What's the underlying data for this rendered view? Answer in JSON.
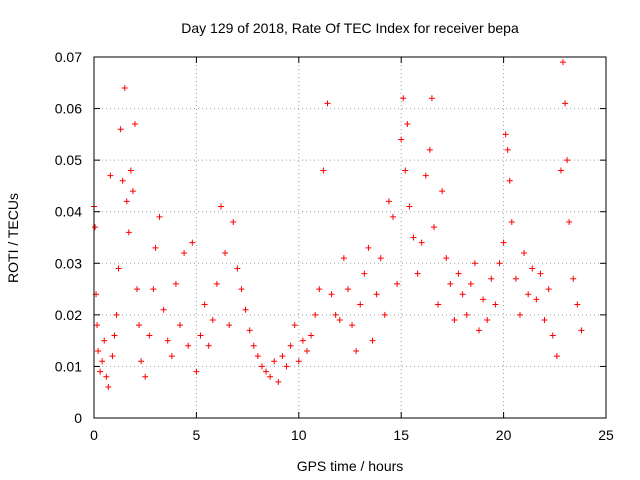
{
  "chart_data": {
    "type": "scatter",
    "title": "Day 129 of 2018, Rate Of TEC Index for receiver bepa",
    "xlabel": "GPS time / hours",
    "ylabel": "ROTI / TECUs",
    "xlim": [
      0,
      25
    ],
    "ylim": [
      0,
      0.07
    ],
    "xticks": [
      0,
      5,
      10,
      15,
      20,
      25
    ],
    "xtick_labels": [
      "0",
      "5",
      "10",
      "15",
      "20",
      "25"
    ],
    "yticks": [
      0,
      0.01,
      0.02,
      0.03,
      0.04,
      0.05,
      0.06,
      0.07
    ],
    "ytick_labels": [
      "0",
      "0.01",
      "0.02",
      "0.03",
      "0.04",
      "0.05",
      "0.06",
      "0.07"
    ],
    "grid": true,
    "marker": "+",
    "marker_color": "#ff0000",
    "series": [
      {
        "name": "ROTI",
        "points": [
          [
            0.0,
            0.041
          ],
          [
            0.05,
            0.037
          ],
          [
            0.1,
            0.024
          ],
          [
            0.15,
            0.018
          ],
          [
            0.2,
            0.013
          ],
          [
            0.3,
            0.009
          ],
          [
            0.4,
            0.011
          ],
          [
            0.5,
            0.015
          ],
          [
            0.6,
            0.008
          ],
          [
            0.7,
            0.006
          ],
          [
            0.8,
            0.047
          ],
          [
            0.9,
            0.012
          ],
          [
            1.0,
            0.016
          ],
          [
            1.1,
            0.02
          ],
          [
            1.2,
            0.029
          ],
          [
            1.3,
            0.056
          ],
          [
            1.4,
            0.046
          ],
          [
            1.5,
            0.064
          ],
          [
            1.6,
            0.042
          ],
          [
            1.7,
            0.036
          ],
          [
            1.8,
            0.048
          ],
          [
            1.9,
            0.044
          ],
          [
            2.0,
            0.057
          ],
          [
            2.1,
            0.025
          ],
          [
            2.2,
            0.018
          ],
          [
            2.3,
            0.011
          ],
          [
            2.5,
            0.008
          ],
          [
            2.7,
            0.016
          ],
          [
            2.9,
            0.025
          ],
          [
            3.0,
            0.033
          ],
          [
            3.2,
            0.039
          ],
          [
            3.4,
            0.021
          ],
          [
            3.6,
            0.015
          ],
          [
            3.8,
            0.012
          ],
          [
            4.0,
            0.026
          ],
          [
            4.2,
            0.018
          ],
          [
            4.4,
            0.032
          ],
          [
            4.6,
            0.014
          ],
          [
            4.8,
            0.034
          ],
          [
            5.0,
            0.009
          ],
          [
            5.2,
            0.016
          ],
          [
            5.4,
            0.022
          ],
          [
            5.6,
            0.014
          ],
          [
            5.8,
            0.019
          ],
          [
            6.0,
            0.026
          ],
          [
            6.2,
            0.041
          ],
          [
            6.4,
            0.032
          ],
          [
            6.6,
            0.018
          ],
          [
            6.8,
            0.038
          ],
          [
            7.0,
            0.029
          ],
          [
            7.2,
            0.025
          ],
          [
            7.4,
            0.021
          ],
          [
            7.6,
            0.017
          ],
          [
            7.8,
            0.014
          ],
          [
            8.0,
            0.012
          ],
          [
            8.2,
            0.01
          ],
          [
            8.4,
            0.009
          ],
          [
            8.6,
            0.008
          ],
          [
            8.8,
            0.011
          ],
          [
            9.0,
            0.007
          ],
          [
            9.2,
            0.012
          ],
          [
            9.4,
            0.01
          ],
          [
            9.6,
            0.014
          ],
          [
            9.8,
            0.018
          ],
          [
            10.0,
            0.011
          ],
          [
            10.2,
            0.015
          ],
          [
            10.4,
            0.013
          ],
          [
            10.6,
            0.016
          ],
          [
            10.8,
            0.02
          ],
          [
            11.0,
            0.025
          ],
          [
            11.2,
            0.048
          ],
          [
            11.4,
            0.061
          ],
          [
            11.6,
            0.024
          ],
          [
            11.8,
            0.02
          ],
          [
            12.0,
            0.019
          ],
          [
            12.2,
            0.031
          ],
          [
            12.4,
            0.025
          ],
          [
            12.6,
            0.018
          ],
          [
            12.8,
            0.013
          ],
          [
            13.0,
            0.022
          ],
          [
            13.2,
            0.028
          ],
          [
            13.4,
            0.033
          ],
          [
            13.6,
            0.015
          ],
          [
            13.8,
            0.024
          ],
          [
            14.0,
            0.031
          ],
          [
            14.2,
            0.02
          ],
          [
            14.4,
            0.042
          ],
          [
            14.6,
            0.039
          ],
          [
            14.8,
            0.026
          ],
          [
            15.0,
            0.054
          ],
          [
            15.1,
            0.062
          ],
          [
            15.2,
            0.048
          ],
          [
            15.3,
            0.057
          ],
          [
            15.4,
            0.041
          ],
          [
            15.6,
            0.035
          ],
          [
            15.8,
            0.028
          ],
          [
            16.0,
            0.034
          ],
          [
            16.2,
            0.047
          ],
          [
            16.4,
            0.052
          ],
          [
            16.5,
            0.062
          ],
          [
            16.6,
            0.037
          ],
          [
            16.8,
            0.022
          ],
          [
            17.0,
            0.044
          ],
          [
            17.2,
            0.031
          ],
          [
            17.4,
            0.026
          ],
          [
            17.6,
            0.019
          ],
          [
            17.8,
            0.028
          ],
          [
            18.0,
            0.024
          ],
          [
            18.2,
            0.02
          ],
          [
            18.4,
            0.026
          ],
          [
            18.6,
            0.03
          ],
          [
            18.8,
            0.017
          ],
          [
            19.0,
            0.023
          ],
          [
            19.2,
            0.019
          ],
          [
            19.4,
            0.027
          ],
          [
            19.6,
            0.022
          ],
          [
            19.8,
            0.03
          ],
          [
            20.0,
            0.034
          ],
          [
            20.1,
            0.055
          ],
          [
            20.2,
            0.052
          ],
          [
            20.3,
            0.046
          ],
          [
            20.4,
            0.038
          ],
          [
            20.6,
            0.027
          ],
          [
            20.8,
            0.02
          ],
          [
            21.0,
            0.032
          ],
          [
            21.2,
            0.024
          ],
          [
            21.4,
            0.029
          ],
          [
            21.6,
            0.023
          ],
          [
            21.8,
            0.028
          ],
          [
            22.0,
            0.019
          ],
          [
            22.2,
            0.025
          ],
          [
            22.4,
            0.016
          ],
          [
            22.6,
            0.012
          ],
          [
            22.8,
            0.048
          ],
          [
            22.9,
            0.069
          ],
          [
            23.0,
            0.061
          ],
          [
            23.1,
            0.05
          ],
          [
            23.2,
            0.038
          ],
          [
            23.4,
            0.027
          ],
          [
            23.6,
            0.022
          ],
          [
            23.8,
            0.017
          ]
        ]
      }
    ]
  }
}
